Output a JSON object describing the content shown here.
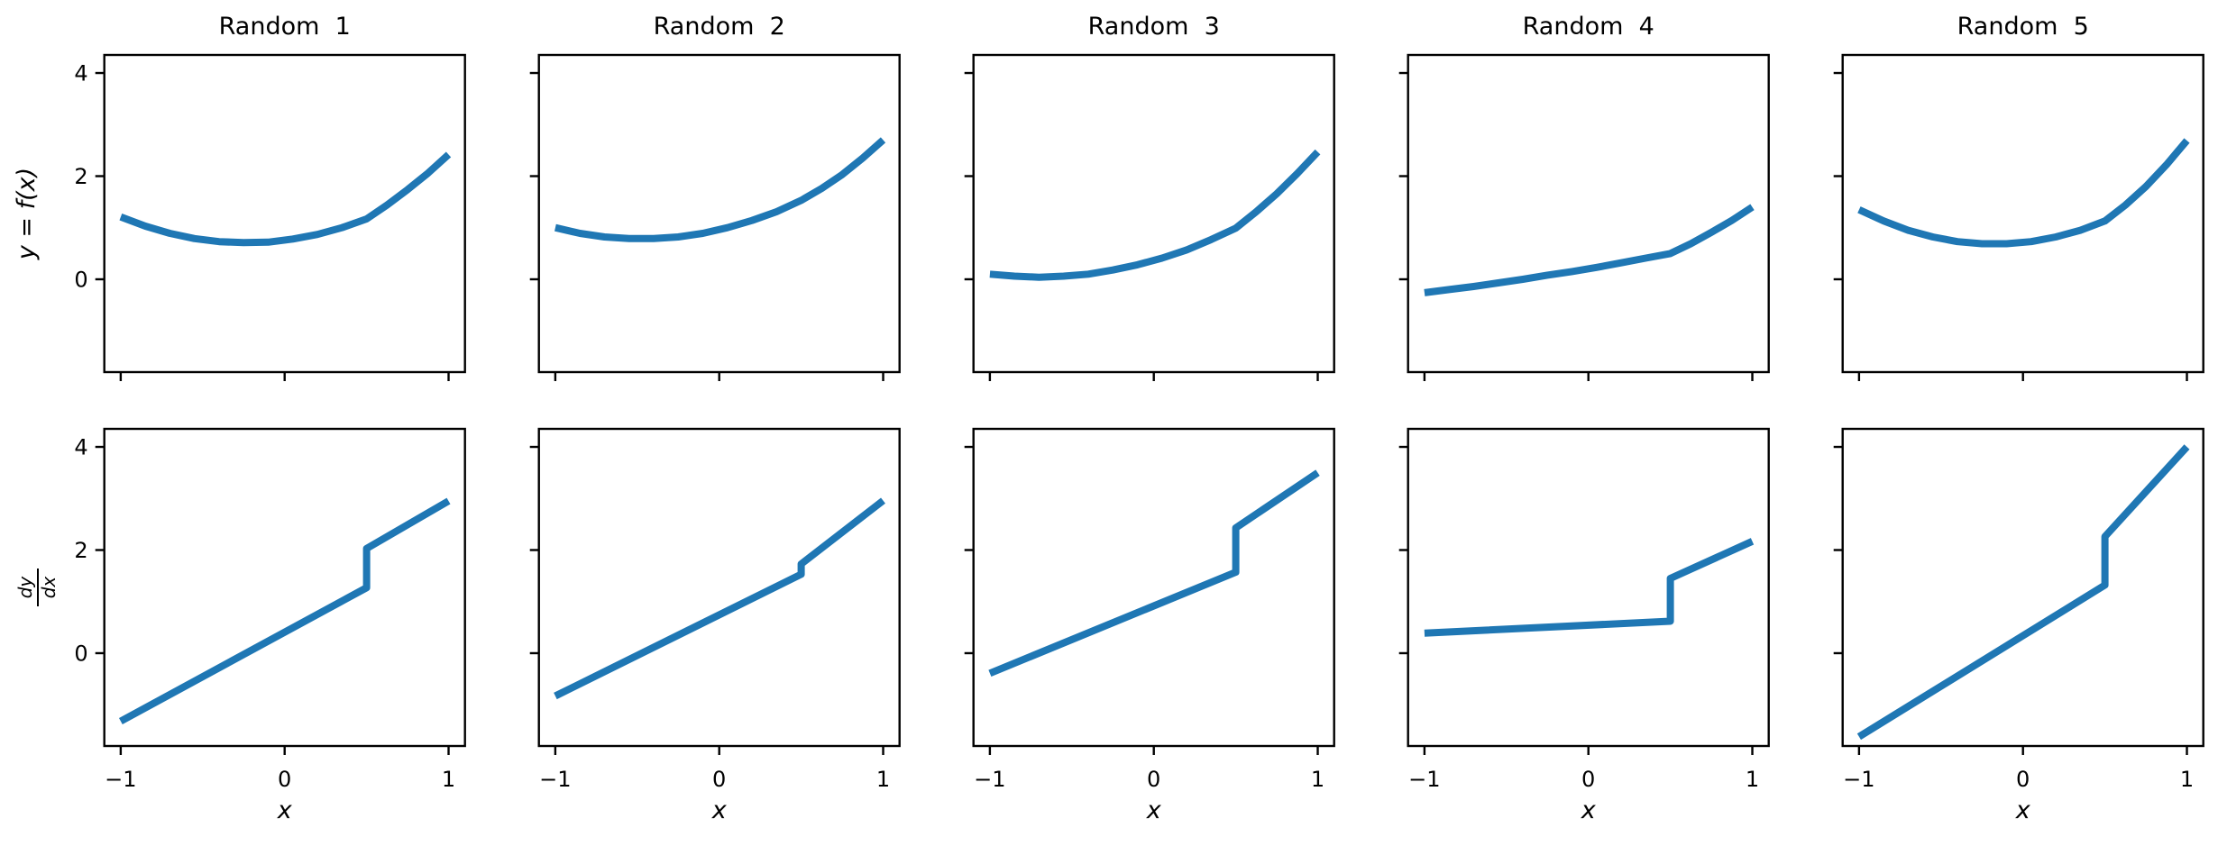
{
  "figure": {
    "background": "#ffffff",
    "axes_color": "#000000",
    "text_color": "#000000",
    "line_color": "#1f77b4",
    "line_width": 8
  },
  "chart_data": {
    "type": "line",
    "grid": {
      "rows": 2,
      "cols": 5
    },
    "xlim": [
      -1.1,
      1.1
    ],
    "ylim": [
      -1.8,
      4.35
    ],
    "xticks": {
      "values": [
        -1,
        0,
        1
      ],
      "labels": [
        "−1",
        "0",
        "1"
      ]
    },
    "yticks": {
      "values": [
        0,
        2,
        4
      ],
      "labels": [
        "0",
        "2",
        "4"
      ]
    },
    "top_row": {
      "ylabel": "y = f(x)"
    },
    "bottom_row": {
      "ylabel_numerator": "dy",
      "ylabel_denominator": "dx",
      "xlabel": "x"
    },
    "f_sample_x": [
      -1,
      -0.85,
      -0.7,
      -0.55,
      -0.4,
      -0.25,
      -0.1,
      0.05,
      0.2,
      0.35,
      0.5,
      0.625,
      0.75,
      0.875,
      1
    ],
    "columns": [
      {
        "title": "Random  1",
        "f_y": [
          1.21,
          1.03,
          0.89,
          0.79,
          0.73,
          0.71,
          0.72,
          0.78,
          0.87,
          1.0,
          1.17,
          1.44,
          1.74,
          2.06,
          2.42
        ],
        "dfdx_x": [
          -1,
          0.5,
          0.5,
          1
        ],
        "dfdx_y": [
          -1.32,
          1.27,
          2.03,
          2.95
        ]
      },
      {
        "title": "Random  2",
        "f_y": [
          1.0,
          0.89,
          0.82,
          0.79,
          0.79,
          0.82,
          0.89,
          1.0,
          1.14,
          1.31,
          1.53,
          1.76,
          2.03,
          2.35,
          2.7
        ],
        "dfdx_x": [
          -1,
          0.5,
          0.5,
          1
        ],
        "dfdx_y": [
          -0.83,
          1.53,
          1.73,
          2.96
        ]
      },
      {
        "title": "Random  3",
        "f_y": [
          0.1,
          0.06,
          0.04,
          0.06,
          0.1,
          0.18,
          0.28,
          0.41,
          0.57,
          0.77,
          0.99,
          1.31,
          1.66,
          2.05,
          2.47
        ],
        "dfdx_x": [
          -1,
          0.5,
          0.5,
          1
        ],
        "dfdx_y": [
          -0.39,
          1.57,
          2.43,
          3.5
        ]
      },
      {
        "title": "Random  4",
        "f_y": [
          -0.26,
          -0.2,
          -0.14,
          -0.07,
          0.0,
          0.08,
          0.15,
          0.23,
          0.32,
          0.41,
          0.5,
          0.69,
          0.91,
          1.14,
          1.4
        ],
        "dfdx_x": [
          -1,
          0.5,
          0.5,
          1
        ],
        "dfdx_y": [
          0.39,
          0.62,
          1.45,
          2.17
        ]
      },
      {
        "title": "Random  5",
        "f_y": [
          1.35,
          1.13,
          0.95,
          0.82,
          0.73,
          0.69,
          0.69,
          0.73,
          0.82,
          0.95,
          1.13,
          1.44,
          1.8,
          2.22,
          2.69
        ],
        "dfdx_x": [
          -1,
          0.5,
          0.5,
          1
        ],
        "dfdx_y": [
          -1.62,
          1.32,
          2.26,
          4.0
        ]
      }
    ]
  }
}
